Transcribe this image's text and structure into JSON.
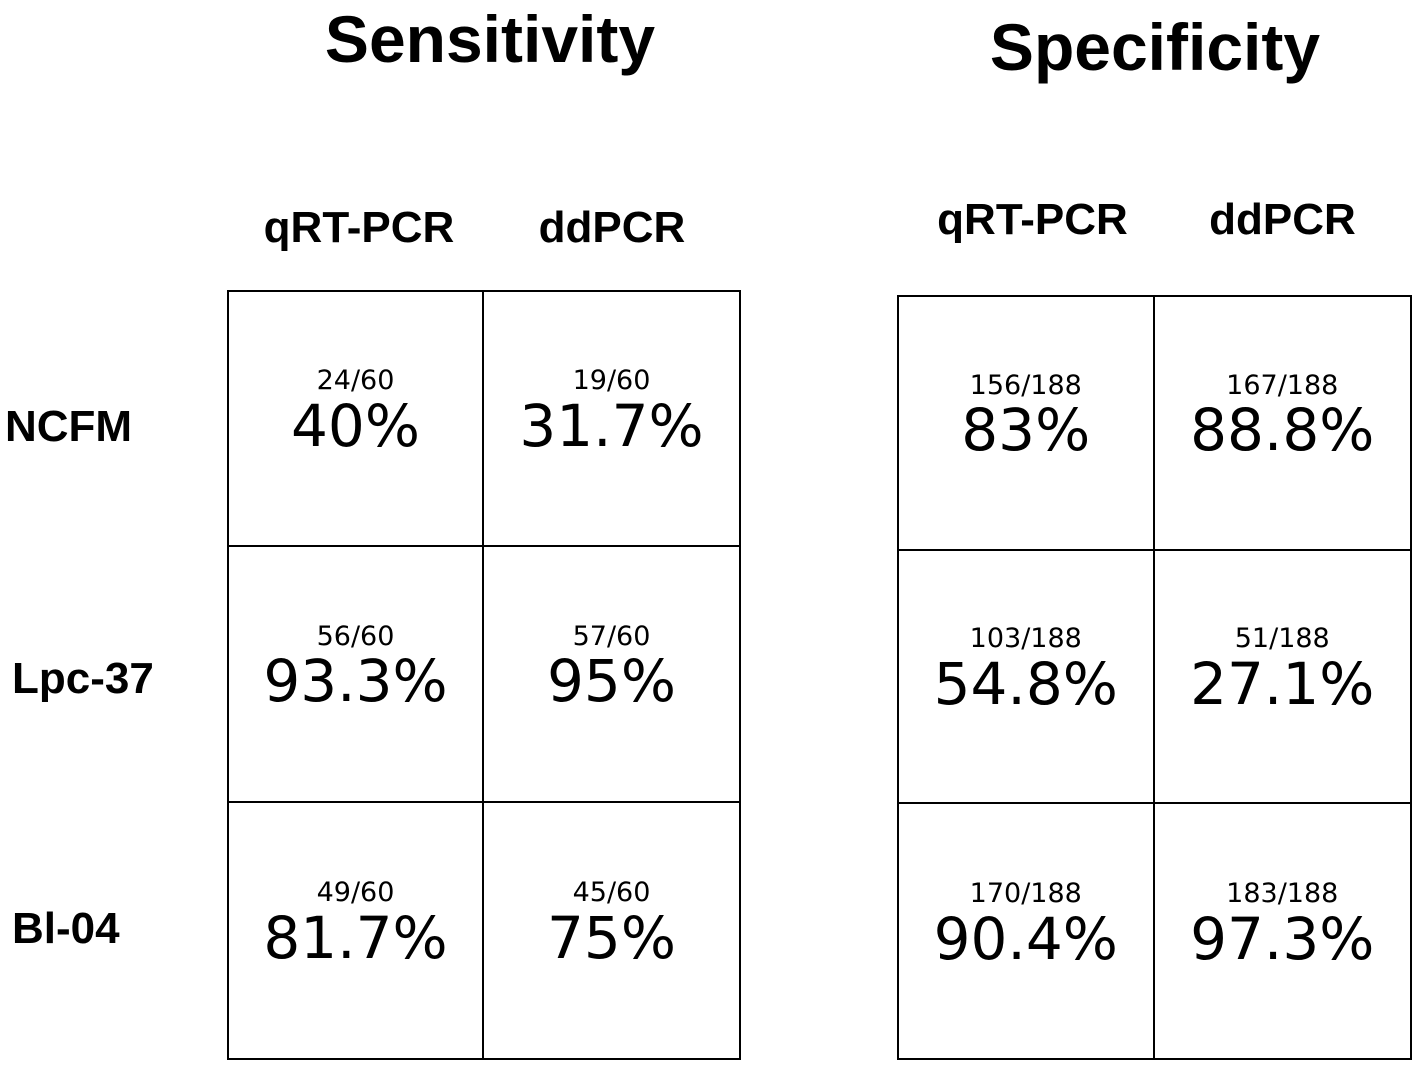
{
  "chart_data": {
    "type": "table",
    "panels": [
      {
        "title": "Sensitivity",
        "columns": [
          "qRT-PCR",
          "ddPCR"
        ],
        "rows": [
          {
            "label": "NCFM",
            "cells": [
              {
                "fraction": "24/60",
                "percent": "40%"
              },
              {
                "fraction": "19/60",
                "percent": "31.7%"
              }
            ]
          },
          {
            "label": "Lpc-37",
            "cells": [
              {
                "fraction": "56/60",
                "percent": "93.3%"
              },
              {
                "fraction": "57/60",
                "percent": "95%"
              }
            ]
          },
          {
            "label": "Bl-04",
            "cells": [
              {
                "fraction": "49/60",
                "percent": "81.7%"
              },
              {
                "fraction": "45/60",
                "percent": "75%"
              }
            ]
          }
        ]
      },
      {
        "title": "Specificity",
        "columns": [
          "qRT-PCR",
          "ddPCR"
        ],
        "rows": [
          {
            "label": "NCFM",
            "cells": [
              {
                "fraction": "156/188",
                "percent": "83%"
              },
              {
                "fraction": "167/188",
                "percent": "88.8%"
              }
            ]
          },
          {
            "label": "Lpc-37",
            "cells": [
              {
                "fraction": "103/188",
                "percent": "54.8%"
              },
              {
                "fraction": "51/188",
                "percent": "27.1%"
              }
            ]
          },
          {
            "label": "Bl-04",
            "cells": [
              {
                "fraction": "170/188",
                "percent": "90.4%"
              },
              {
                "fraction": "183/188",
                "percent": "97.3%"
              }
            ]
          }
        ]
      }
    ]
  }
}
